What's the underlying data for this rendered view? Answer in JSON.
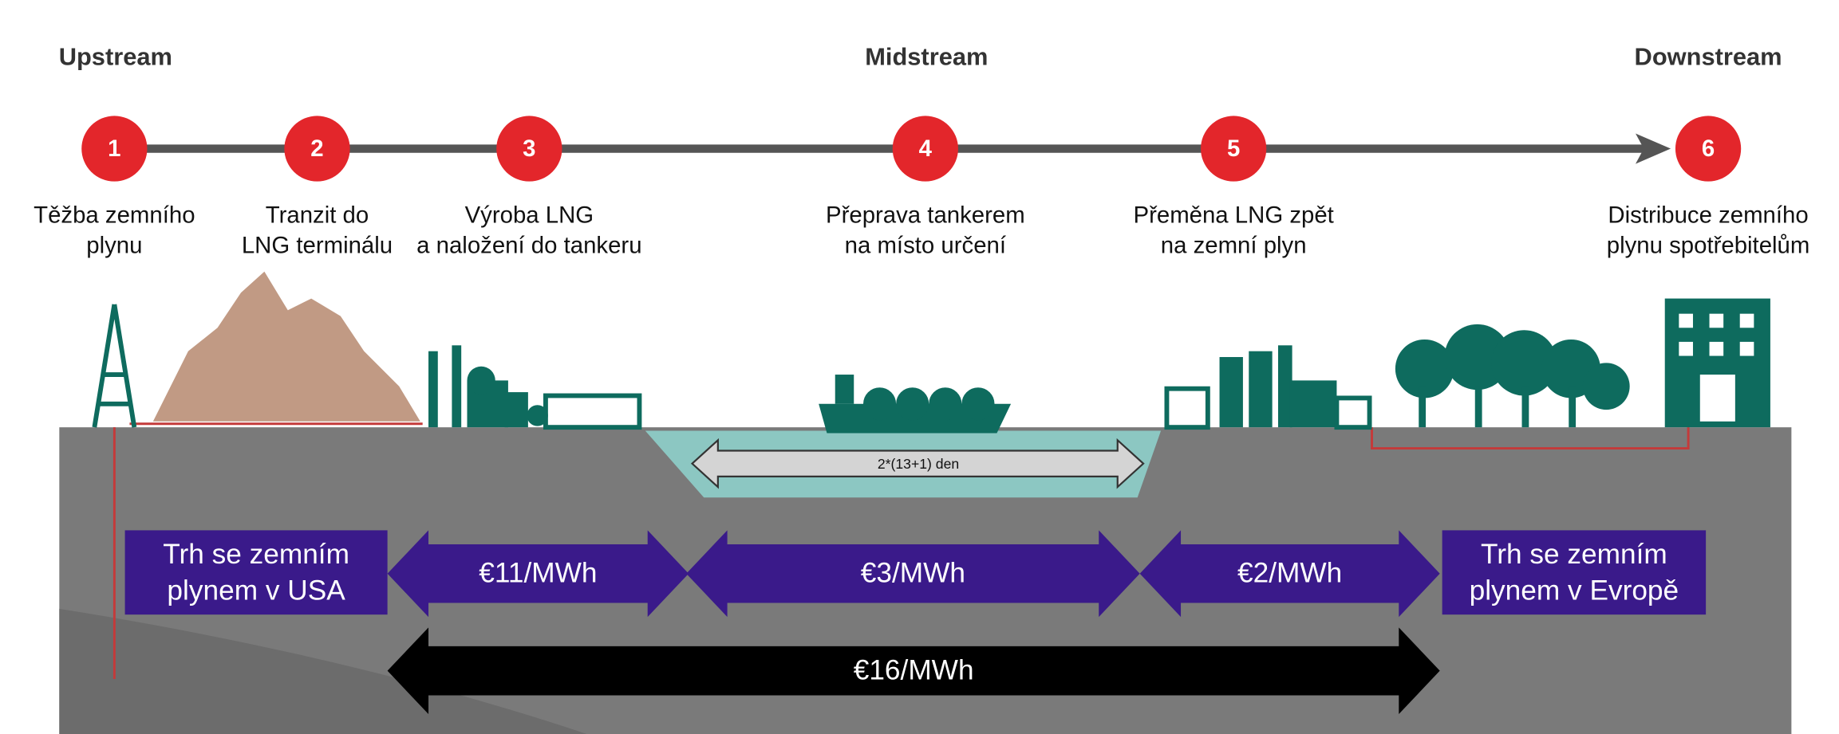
{
  "stages": [
    "Upstream",
    "Midstream",
    "Downstream"
  ],
  "nodes": [
    {
      "number": "1",
      "caption": [
        "Těžba zemního",
        "plynu"
      ]
    },
    {
      "number": "2",
      "caption": [
        "Tranzit do",
        "LNG terminálu"
      ]
    },
    {
      "number": "3",
      "caption": [
        "Výroba LNG",
        "a naložení do tankeru"
      ]
    },
    {
      "number": "4",
      "caption": [
        "Přeprava tankerem",
        "na místo určení"
      ]
    },
    {
      "number": "5",
      "caption": [
        "Přeměna LNG zpět",
        "na zemní plyn"
      ]
    },
    {
      "number": "6",
      "caption": [
        "Distribuce zemního",
        "plynu spotřebitelům"
      ]
    }
  ],
  "duration": "2*(13+1) den",
  "markets": [
    [
      "Trh se zemním",
      "plynem v USA"
    ],
    [
      "Trh se zemním",
      "plynem v Evropě"
    ]
  ],
  "costs": [
    "€11/MWh",
    "€3/MWh",
    "€2/MWh"
  ],
  "total_cost": "€16/MWh"
}
